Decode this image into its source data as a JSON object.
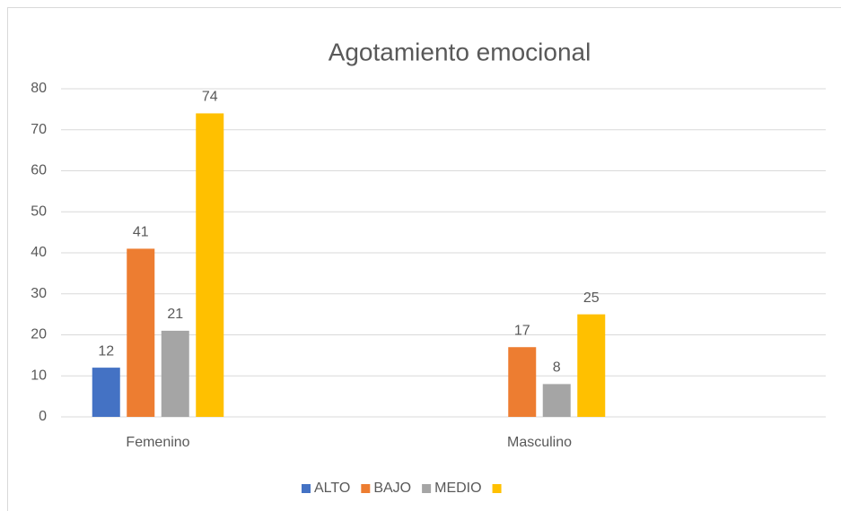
{
  "chart_data": {
    "type": "bar",
    "title": "Agotamiento emocional",
    "categories": [
      "Femenino",
      "Masculino"
    ],
    "series": [
      {
        "name": "ALTO",
        "color": "#4472c4",
        "values": [
          12,
          null
        ]
      },
      {
        "name": "BAJO",
        "color": "#ed7d31",
        "values": [
          41,
          17
        ]
      },
      {
        "name": "MEDIO",
        "color": "#a5a5a5",
        "values": [
          21,
          8
        ]
      },
      {
        "color": "#ffc000",
        "values": [
          74,
          25
        ]
      }
    ],
    "ylim": [
      0,
      80
    ],
    "yticks": [
      0,
      10,
      20,
      30,
      40,
      50,
      60,
      70,
      80
    ],
    "grid": true,
    "legend": "bottom"
  }
}
